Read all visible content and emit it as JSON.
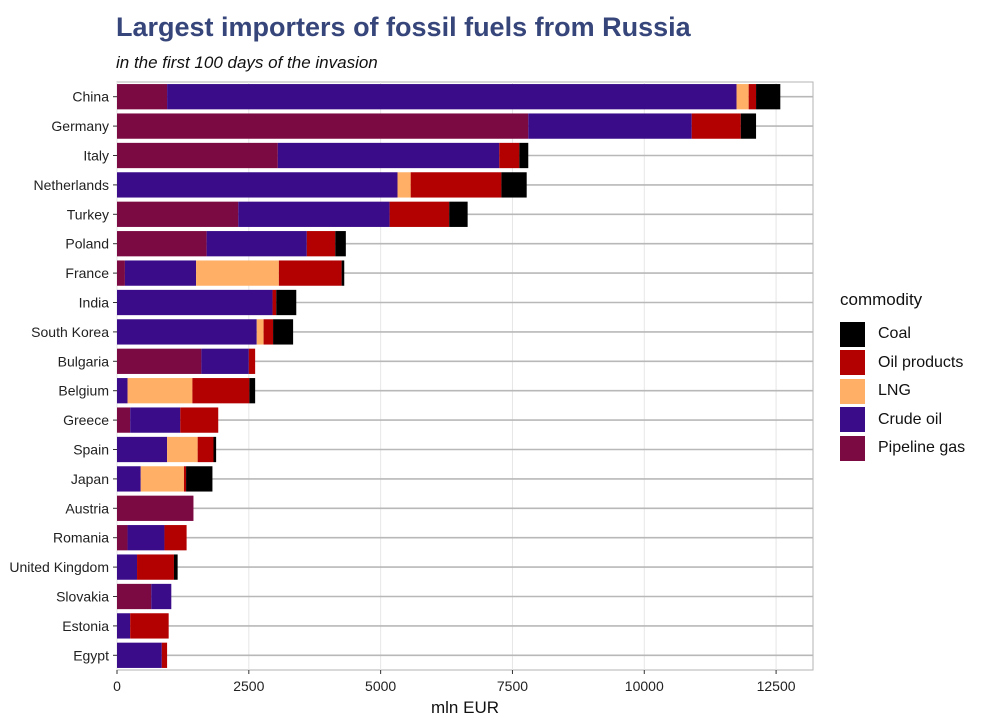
{
  "chart_data": {
    "type": "bar",
    "orientation": "horizontal",
    "stacked": true,
    "title": "Largest importers of fossil fuels from Russia",
    "subtitle": "in the first 100 days of the invasion",
    "xlabel": "mln EUR",
    "ylabel": "",
    "xlim": [
      0,
      13200
    ],
    "xticks": [
      0,
      2500,
      5000,
      7500,
      10000,
      12500
    ],
    "xtick_labels": [
      "0",
      "2500",
      "5000",
      "7500",
      "10000",
      "12500"
    ],
    "grid": true,
    "legend_title": "commodity",
    "legend_position": "right",
    "categories": [
      "China",
      "Germany",
      "Italy",
      "Netherlands",
      "Turkey",
      "Poland",
      "France",
      "India",
      "South Korea",
      "Bulgaria",
      "Belgium",
      "Greece",
      "Spain",
      "Japan",
      "Austria",
      "Romania",
      "United Kingdom",
      "Slovakia",
      "Estonia",
      "Egypt"
    ],
    "series": [
      {
        "name": "Pipeline gas",
        "color": "#7b0a43",
        "values": [
          950,
          7800,
          3050,
          0,
          2300,
          1700,
          150,
          0,
          0,
          1600,
          0,
          250,
          0,
          0,
          1450,
          200,
          0,
          650,
          0,
          0
        ]
      },
      {
        "name": "Crude oil",
        "color": "#3a0c8a",
        "values": [
          10800,
          3100,
          4200,
          5320,
          2870,
          1900,
          1350,
          2950,
          2650,
          900,
          200,
          950,
          950,
          450,
          0,
          700,
          380,
          380,
          250,
          850
        ]
      },
      {
        "name": "LNG",
        "color": "#ffb066",
        "values": [
          230,
          0,
          0,
          250,
          0,
          0,
          1570,
          0,
          130,
          0,
          1230,
          0,
          580,
          820,
          0,
          0,
          0,
          0,
          0,
          0
        ]
      },
      {
        "name": "Oil products",
        "color": "#b30000",
        "values": [
          140,
          930,
          380,
          1720,
          1130,
          540,
          1190,
          70,
          180,
          120,
          1080,
          720,
          300,
          40,
          0,
          420,
          700,
          0,
          730,
          100
        ]
      },
      {
        "name": "Coal",
        "color": "#000000",
        "values": [
          460,
          290,
          170,
          480,
          350,
          200,
          50,
          380,
          380,
          0,
          110,
          0,
          50,
          500,
          0,
          0,
          70,
          0,
          0,
          0
        ]
      }
    ],
    "legend_order": [
      "Coal",
      "Oil products",
      "LNG",
      "Crude oil",
      "Pipeline gas"
    ]
  }
}
